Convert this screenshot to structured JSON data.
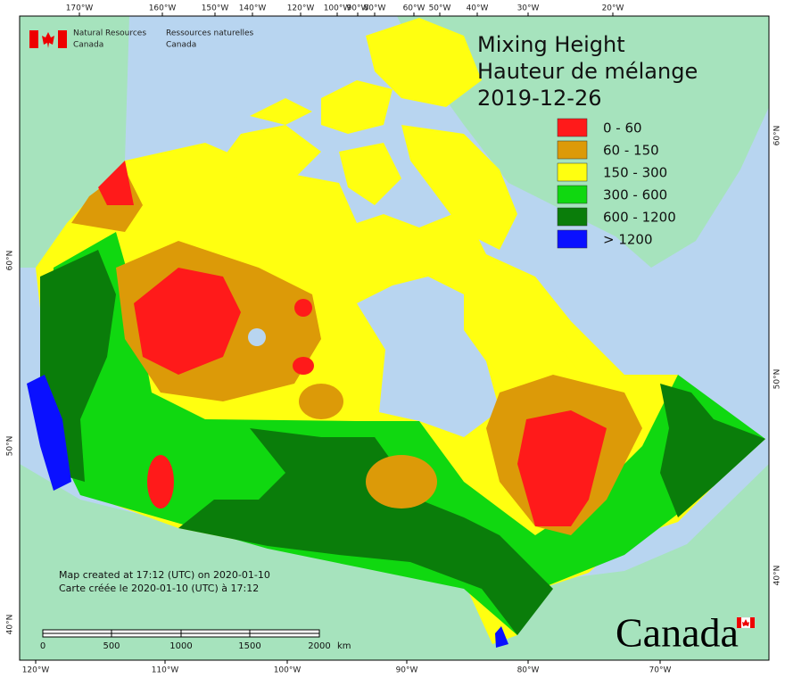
{
  "credit": {
    "en": [
      "Natural Resources",
      "Canada"
    ],
    "fr": [
      "Ressources naturelles",
      "Canada"
    ]
  },
  "title_en": "Mixing Height",
  "title_fr": "Hauteur de mélange",
  "date": "2019-12-26",
  "legend": [
    {
      "label": "0 - 60",
      "color": "#ff1a1a"
    },
    {
      "label": "60 - 150",
      "color": "#dc9a08"
    },
    {
      "label": "150 - 300",
      "color": "#ffff10"
    },
    {
      "label": "300 - 600",
      "color": "#10d810"
    },
    {
      "label": "600 - 1200",
      "color": "#0a7d0a"
    },
    {
      "label": "> 1200",
      "color": "#0a10ff"
    }
  ],
  "top_labels": [
    "170°W",
    "160°W",
    "150°W",
    "140°W",
    "120°W",
    "100°W",
    "90°W",
    "80°W",
    "60°W",
    "50°W",
    "40°W",
    "30°W",
    "20°W"
  ],
  "bottom_labels": [
    "120°W",
    "110°W",
    "100°W",
    "90°W",
    "80°W",
    "70°W"
  ],
  "left_labels": [
    "60°N",
    "50°N",
    "40°N"
  ],
  "right_labels": [
    "60°N",
    "50°N",
    "40°N"
  ],
  "notes": [
    "Map created at 17:12 (UTC) on 2020-01-10",
    "Carte créée le 2020-01-10 (UTC) à 17:12"
  ],
  "scale": {
    "labels": [
      "0",
      "500",
      "1000",
      "1500",
      "2000"
    ],
    "unit": "km"
  },
  "wordmark": "Canada"
}
